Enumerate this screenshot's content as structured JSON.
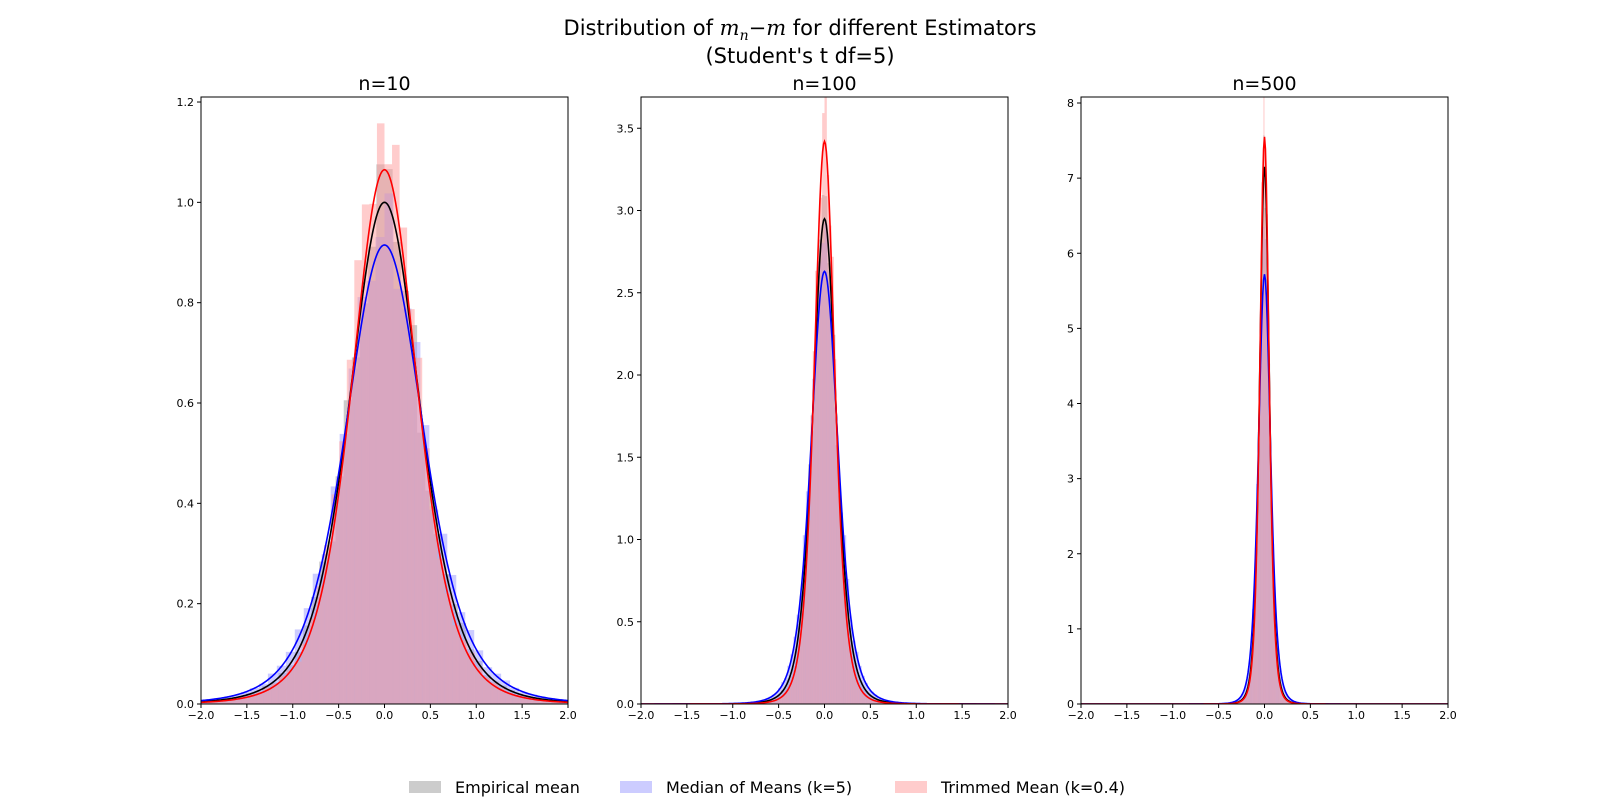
{
  "chart_data": {
    "type": "histogram-kde",
    "title": "Distribution of m_n−m for different Estimators",
    "title_parts": {
      "prefix": "Distribution of ",
      "math_m": "m",
      "math_sub": "n",
      "math_rest": "−m",
      "suffix": " for different Estimators"
    },
    "subtitle": "(Student's t df=5)",
    "legend_placement": "bottom-center",
    "series_colors": {
      "empirical": {
        "fill": "#999999",
        "line": "#000000"
      },
      "median": {
        "fill": "#9999ff",
        "line": "#0000ff"
      },
      "trimmed": {
        "fill": "#ff9999",
        "line": "#ff0000"
      }
    },
    "legend": [
      {
        "key": "empirical",
        "label": "Empirical mean"
      },
      {
        "key": "median",
        "label": "Median of Means (k=5)"
      },
      {
        "key": "trimmed",
        "label": "Trimmed Mean (k=0.4)"
      }
    ],
    "panels": [
      {
        "title": "n=10",
        "xlim": [
          -2.0,
          2.0
        ],
        "ylim": [
          0,
          1.21
        ],
        "xticks": [
          -2.0,
          -1.5,
          -1.0,
          -0.5,
          0.0,
          0.5,
          1.0,
          1.5,
          2.0
        ],
        "yticks": [
          0.0,
          0.2,
          0.4,
          0.6,
          0.8,
          1.0,
          1.2
        ],
        "kde_peak": {
          "empirical": 1.0,
          "median": 0.915,
          "trimmed": 1.065
        },
        "kde_sd": {
          "empirical": 0.4,
          "median": 0.44,
          "trimmed": 0.37
        },
        "hist_max": {
          "empirical": 1.0,
          "median": 0.94,
          "trimmed": 1.15
        }
      },
      {
        "title": "n=100",
        "xlim": [
          -2.0,
          2.0
        ],
        "ylim": [
          0,
          3.69
        ],
        "xticks": [
          -2.0,
          -1.5,
          -1.0,
          -0.5,
          0.0,
          0.5,
          1.0,
          1.5,
          2.0
        ],
        "yticks": [
          0.0,
          0.5,
          1.0,
          1.5,
          2.0,
          2.5,
          3.0,
          3.5
        ],
        "kde_peak": {
          "empirical": 2.95,
          "median": 2.63,
          "trimmed": 3.42
        },
        "kde_sd": {
          "empirical": 0.133,
          "median": 0.152,
          "trimmed": 0.115
        },
        "hist_max": {
          "empirical": 3.0,
          "median": 2.7,
          "trimmed": 3.5
        }
      },
      {
        "title": "n=500",
        "xlim": [
          -2.0,
          2.0
        ],
        "ylim": [
          0,
          8.08
        ],
        "xticks": [
          -2.0,
          -1.5,
          -1.0,
          -0.5,
          0.0,
          0.5,
          1.0,
          1.5,
          2.0
        ],
        "yticks": [
          0,
          1,
          2,
          3,
          4,
          5,
          6,
          7,
          8
        ],
        "kde_peak": {
          "empirical": 7.15,
          "median": 5.72,
          "trimmed": 7.55
        },
        "kde_sd": {
          "empirical": 0.055,
          "median": 0.068,
          "trimmed": 0.052
        },
        "hist_max": {
          "empirical": 7.3,
          "median": 5.9,
          "trimmed": 7.7
        }
      }
    ]
  }
}
